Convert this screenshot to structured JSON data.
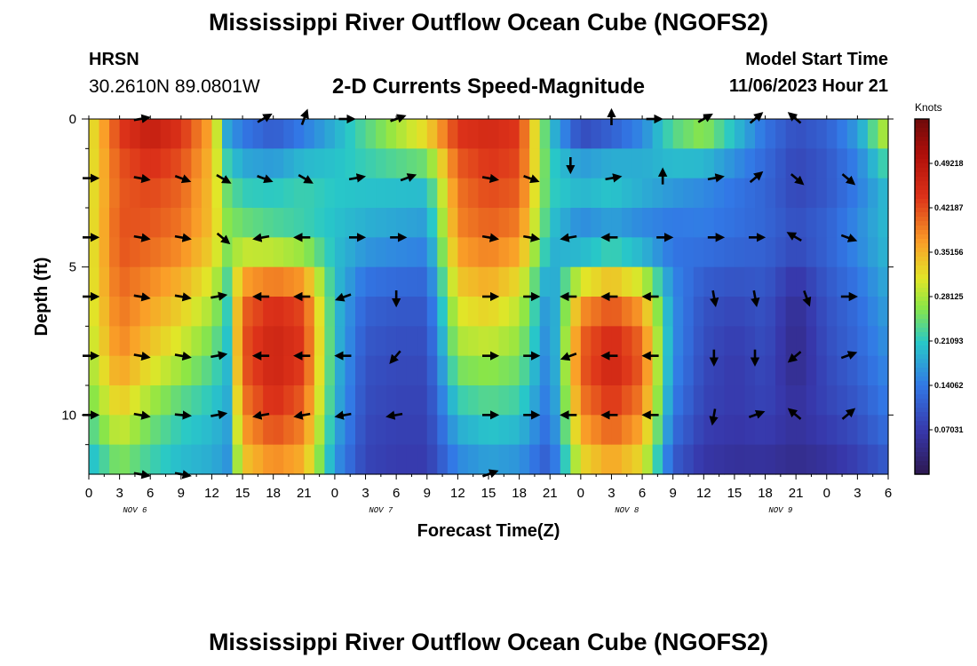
{
  "header": {
    "title": "Mississippi River Outflow Ocean Cube (NGOFS2)",
    "station": "HRSN",
    "coords": "30.2610N  89.0801W",
    "subtitle": "2-D Currents Speed-Magnitude",
    "model_start_label": "Model Start Time",
    "model_start_value": "11/06/2023 Hour 21"
  },
  "footer": {
    "title": "Mississippi River Outflow Ocean Cube (NGOFS2)"
  },
  "chart_data": {
    "type": "heatmap",
    "title": "2-D Currents Speed-Magnitude",
    "xlabel": "Forecast Time(Z)",
    "ylabel": "Depth (ft)",
    "x_tick_labels": [
      "0",
      "3",
      "6",
      "9",
      "12",
      "15",
      "18",
      "21",
      "0",
      "3",
      "6",
      "9",
      "12",
      "15",
      "18",
      "21",
      "0",
      "3",
      "6",
      "9",
      "12",
      "15",
      "18",
      "21",
      "0",
      "3",
      "6"
    ],
    "date_labels": [
      {
        "text": "NOV 6",
        "hour": 4.5
      },
      {
        "text": "NOV 7",
        "hour": 28.5
      },
      {
        "text": "NOV 8",
        "hour": 52.5
      },
      {
        "text": "NOV 9",
        "hour": 67.5
      }
    ],
    "xlim_hours": [
      0,
      78
    ],
    "ylim_ft": [
      0,
      12
    ],
    "y_ticks": [
      0,
      5,
      10
    ],
    "y_tick_labels": [
      "0",
      "5",
      "10"
    ],
    "depths_ft": [
      0,
      2,
      4,
      6,
      8,
      10,
      12
    ],
    "hours": [
      0,
      3,
      6,
      9,
      12,
      13.5,
      15,
      18,
      21,
      24,
      27,
      30,
      33,
      36,
      39,
      42,
      45,
      48,
      51,
      54,
      57,
      60,
      63,
      66,
      69,
      72,
      75,
      78
    ],
    "speed_knots": [
      [
        0.3,
        0.44,
        0.49,
        0.45,
        0.36,
        0.16,
        0.12,
        0.08,
        0.12,
        0.18,
        0.24,
        0.3,
        0.36,
        0.45,
        0.46,
        0.44,
        0.2,
        0.05,
        0.08,
        0.14,
        0.25,
        0.3,
        0.22,
        0.14,
        0.1,
        0.12,
        0.18,
        0.33
      ],
      [
        0.3,
        0.41,
        0.43,
        0.41,
        0.34,
        0.24,
        0.2,
        0.2,
        0.22,
        0.21,
        0.21,
        0.21,
        0.21,
        0.4,
        0.43,
        0.42,
        0.22,
        0.21,
        0.22,
        0.2,
        0.18,
        0.16,
        0.14,
        0.12,
        0.08,
        0.1,
        0.14,
        0.2
      ],
      [
        0.3,
        0.42,
        0.41,
        0.39,
        0.34,
        0.27,
        0.26,
        0.24,
        0.22,
        0.2,
        0.18,
        0.17,
        0.16,
        0.38,
        0.4,
        0.38,
        0.2,
        0.14,
        0.16,
        0.14,
        0.13,
        0.14,
        0.13,
        0.12,
        0.1,
        0.12,
        0.16,
        0.2
      ],
      [
        0.3,
        0.4,
        0.37,
        0.34,
        0.29,
        0.22,
        0.4,
        0.44,
        0.42,
        0.2,
        0.12,
        0.11,
        0.11,
        0.32,
        0.34,
        0.3,
        0.15,
        0.36,
        0.4,
        0.35,
        0.16,
        0.1,
        0.09,
        0.1,
        0.05,
        0.1,
        0.13,
        0.18
      ],
      [
        0.28,
        0.38,
        0.33,
        0.29,
        0.24,
        0.2,
        0.42,
        0.47,
        0.44,
        0.2,
        0.1,
        0.09,
        0.09,
        0.27,
        0.28,
        0.26,
        0.14,
        0.42,
        0.47,
        0.42,
        0.16,
        0.09,
        0.07,
        0.09,
        0.04,
        0.09,
        0.12,
        0.16
      ],
      [
        0.24,
        0.32,
        0.26,
        0.22,
        0.2,
        0.18,
        0.38,
        0.44,
        0.4,
        0.19,
        0.09,
        0.08,
        0.08,
        0.2,
        0.22,
        0.21,
        0.13,
        0.38,
        0.43,
        0.38,
        0.14,
        0.08,
        0.07,
        0.08,
        0.06,
        0.08,
        0.1,
        0.14
      ],
      [
        0.18,
        0.24,
        0.21,
        0.19,
        0.18,
        0.16,
        0.32,
        0.36,
        0.34,
        0.16,
        0.08,
        0.07,
        0.07,
        0.14,
        0.16,
        0.15,
        0.1,
        0.3,
        0.34,
        0.3,
        0.1,
        0.06,
        0.05,
        0.05,
        0.04,
        0.05,
        0.07,
        0.1
      ]
    ],
    "colorbar": {
      "unit": "Knots",
      "range": [
        0,
        0.5625
      ],
      "tick_values": [
        0.49218,
        0.42187,
        0.35156,
        0.28125,
        0.21093,
        0.14062,
        0.07031
      ],
      "tick_labels": [
        "0.49218",
        "0.42187",
        "0.35156",
        "0.28125",
        "0.21093",
        "0.14062",
        "0.07031"
      ]
    },
    "arrows": [
      {
        "hour": 0,
        "depth": 2,
        "angle": 0
      },
      {
        "hour": 0,
        "depth": 4,
        "angle": 0
      },
      {
        "hour": 0,
        "depth": 6,
        "angle": 0
      },
      {
        "hour": 0,
        "depth": 8,
        "angle": 0
      },
      {
        "hour": 0,
        "depth": 10,
        "angle": 0
      },
      {
        "hour": 5,
        "depth": 0,
        "angle": 10
      },
      {
        "hour": 5,
        "depth": 2,
        "angle": -10
      },
      {
        "hour": 5,
        "depth": 4,
        "angle": -10
      },
      {
        "hour": 5,
        "depth": 6,
        "angle": -10
      },
      {
        "hour": 5,
        "depth": 8,
        "angle": -10
      },
      {
        "hour": 5,
        "depth": 10,
        "angle": -10
      },
      {
        "hour": 5,
        "depth": 12,
        "angle": -10
      },
      {
        "hour": 9,
        "depth": 2,
        "angle": -20
      },
      {
        "hour": 9,
        "depth": 4,
        "angle": -10
      },
      {
        "hour": 9,
        "depth": 6,
        "angle": -10
      },
      {
        "hour": 9,
        "depth": 8,
        "angle": -10
      },
      {
        "hour": 9,
        "depth": 10,
        "angle": -5
      },
      {
        "hour": 9,
        "depth": 12,
        "angle": -10
      },
      {
        "hour": 13,
        "depth": 2,
        "angle": -30
      },
      {
        "hour": 13,
        "depth": 4,
        "angle": -40
      },
      {
        "hour": 12.5,
        "depth": 6,
        "angle": 10
      },
      {
        "hour": 12.5,
        "depth": 8,
        "angle": 10
      },
      {
        "hour": 12.5,
        "depth": 10,
        "angle": 10
      },
      {
        "hour": 17,
        "depth": 0,
        "angle": 30
      },
      {
        "hour": 17,
        "depth": 2,
        "angle": -20
      },
      {
        "hour": 17,
        "depth": 4,
        "angle": 190
      },
      {
        "hour": 17,
        "depth": 6,
        "angle": 180
      },
      {
        "hour": 17,
        "depth": 8,
        "angle": 180
      },
      {
        "hour": 17,
        "depth": 10,
        "angle": 190
      },
      {
        "hour": 21,
        "depth": 0,
        "angle": 70
      },
      {
        "hour": 21,
        "depth": 2,
        "angle": -30
      },
      {
        "hour": 21,
        "depth": 4,
        "angle": 180
      },
      {
        "hour": 21,
        "depth": 6,
        "angle": 180
      },
      {
        "hour": 21,
        "depth": 8,
        "angle": 180
      },
      {
        "hour": 21,
        "depth": 10,
        "angle": 190
      },
      {
        "hour": 25,
        "depth": 0,
        "angle": 0
      },
      {
        "hour": 26,
        "depth": 2,
        "angle": 10
      },
      {
        "hour": 26,
        "depth": 4,
        "angle": 0
      },
      {
        "hour": 25,
        "depth": 6,
        "angle": 200
      },
      {
        "hour": 25,
        "depth": 8,
        "angle": 180
      },
      {
        "hour": 25,
        "depth": 10,
        "angle": 190
      },
      {
        "hour": 30,
        "depth": 0,
        "angle": 20
      },
      {
        "hour": 31,
        "depth": 2,
        "angle": 20
      },
      {
        "hour": 30,
        "depth": 4,
        "angle": 0
      },
      {
        "hour": 30,
        "depth": 6,
        "angle": -90
      },
      {
        "hour": 30,
        "depth": 8,
        "angle": 230
      },
      {
        "hour": 30,
        "depth": 10,
        "angle": 190
      },
      {
        "hour": 39,
        "depth": 2,
        "angle": -10
      },
      {
        "hour": 39,
        "depth": 4,
        "angle": -10
      },
      {
        "hour": 39,
        "depth": 6,
        "angle": 0
      },
      {
        "hour": 39,
        "depth": 8,
        "angle": 0
      },
      {
        "hour": 39,
        "depth": 10,
        "angle": 0
      },
      {
        "hour": 39,
        "depth": 12,
        "angle": 20
      },
      {
        "hour": 43,
        "depth": 2,
        "angle": -20
      },
      {
        "hour": 43,
        "depth": 4,
        "angle": -10
      },
      {
        "hour": 43,
        "depth": 6,
        "angle": 0
      },
      {
        "hour": 43,
        "depth": 8,
        "angle": 0
      },
      {
        "hour": 43,
        "depth": 10,
        "angle": 0
      },
      {
        "hour": 47,
        "depth": 1.5,
        "angle": -90
      },
      {
        "hour": 47,
        "depth": 4,
        "angle": 190
      },
      {
        "hour": 47,
        "depth": 6,
        "angle": 180
      },
      {
        "hour": 47,
        "depth": 8,
        "angle": 200
      },
      {
        "hour": 47,
        "depth": 10,
        "angle": 180
      },
      {
        "hour": 51,
        "depth": 0,
        "angle": 90
      },
      {
        "hour": 51,
        "depth": 2,
        "angle": 10
      },
      {
        "hour": 51,
        "depth": 4,
        "angle": 180
      },
      {
        "hour": 51,
        "depth": 6,
        "angle": 180
      },
      {
        "hour": 51,
        "depth": 8,
        "angle": 180
      },
      {
        "hour": 51,
        "depth": 10,
        "angle": 180
      },
      {
        "hour": 55,
        "depth": 0,
        "angle": 0
      },
      {
        "hour": 56,
        "depth": 2,
        "angle": 90
      },
      {
        "hour": 56,
        "depth": 4,
        "angle": 0
      },
      {
        "hour": 55,
        "depth": 6,
        "angle": 180
      },
      {
        "hour": 55,
        "depth": 8,
        "angle": 180
      },
      {
        "hour": 55,
        "depth": 10,
        "angle": 180
      },
      {
        "hour": 60,
        "depth": 0,
        "angle": 30
      },
      {
        "hour": 61,
        "depth": 2,
        "angle": 10
      },
      {
        "hour": 61,
        "depth": 4,
        "angle": 0
      },
      {
        "hour": 61,
        "depth": 6,
        "angle": -80
      },
      {
        "hour": 61,
        "depth": 8,
        "angle": -90
      },
      {
        "hour": 61,
        "depth": 10,
        "angle": -100
      },
      {
        "hour": 65,
        "depth": 0,
        "angle": 40
      },
      {
        "hour": 65,
        "depth": 2,
        "angle": 40
      },
      {
        "hour": 65,
        "depth": 4,
        "angle": 0
      },
      {
        "hour": 65,
        "depth": 6,
        "angle": -80
      },
      {
        "hour": 65,
        "depth": 8,
        "angle": -90
      },
      {
        "hour": 65,
        "depth": 10,
        "angle": 20
      },
      {
        "hour": 69,
        "depth": 0,
        "angle": 140
      },
      {
        "hour": 69,
        "depth": 2,
        "angle": -40
      },
      {
        "hour": 69,
        "depth": 4,
        "angle": 150
      },
      {
        "hour": 70,
        "depth": 6,
        "angle": -70
      },
      {
        "hour": 69,
        "depth": 8,
        "angle": 220
      },
      {
        "hour": 69,
        "depth": 10,
        "angle": 140
      },
      {
        "hour": 74,
        "depth": 2,
        "angle": -40
      },
      {
        "hour": 74,
        "depth": 4,
        "angle": -20
      },
      {
        "hour": 74,
        "depth": 6,
        "angle": 0
      },
      {
        "hour": 74,
        "depth": 8,
        "angle": 20
      },
      {
        "hour": 74,
        "depth": 10,
        "angle": 40
      }
    ]
  }
}
